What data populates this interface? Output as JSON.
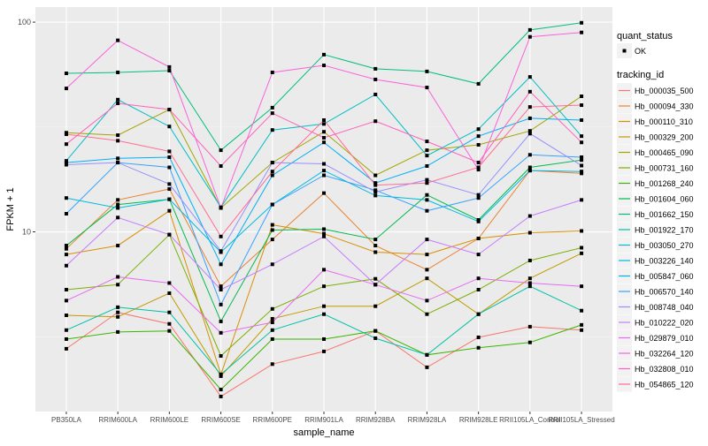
{
  "chart_data": {
    "type": "line",
    "title": "",
    "xlabel": "sample_name",
    "ylabel": "FPKM + 1",
    "yscale": "log10",
    "ylim": [
      1.39,
      118
    ],
    "yticks": [
      {
        "value": 100,
        "label": "100"
      },
      {
        "value": 10,
        "label": "10"
      }
    ],
    "grid": true,
    "legend_placement": "right",
    "categories": [
      "PB350LA",
      "RRIM600LA",
      "RRIM600LE",
      "RRIM600SE",
      "RRIM600PE",
      "RRIM901LA",
      "RRIM928BA",
      "RRIM928LA",
      "RRIM928LE",
      "RRII105LA_Control",
      "RRII105LA_Stressed"
    ],
    "shape_legend": {
      "title": "quant_status",
      "items": [
        "OK"
      ]
    },
    "color_legend_title": "tracking_id",
    "series": [
      {
        "name": "Hb_000035_500",
        "color": "#F8766D",
        "values": [
          2.77,
          4.13,
          3.64,
          1.64,
          2.34,
          2.69,
          3.37,
          2.26,
          3.14,
          3.53,
          3.4
        ]
      },
      {
        "name": "Hb_000094_330",
        "color": "#EA8331",
        "values": [
          8.3,
          14.2,
          16.0,
          5.5,
          9.2,
          15.3,
          8.6,
          6.6,
          9.3,
          19.6,
          19.0
        ]
      },
      {
        "name": "Hb_000110_310",
        "color": "#D89000",
        "values": [
          7.8,
          8.6,
          12.6,
          2.09,
          10.8,
          9.8,
          8.0,
          7.8,
          9.3,
          9.9,
          10.1
        ]
      },
      {
        "name": "Hb_000329_200",
        "color": "#C09B00",
        "values": [
          4.0,
          3.93,
          5.1,
          2.05,
          3.85,
          4.42,
          4.42,
          6.0,
          4.05,
          6.0,
          7.9
        ]
      },
      {
        "name": "Hb_000465_090",
        "color": "#A3A500",
        "values": [
          29.7,
          28.9,
          38.3,
          13.0,
          21.4,
          30.0,
          18.6,
          24.5,
          26.0,
          30.3,
          44.3
        ]
      },
      {
        "name": "Hb_000731_160",
        "color": "#7CAE00",
        "values": [
          5.3,
          5.6,
          9.7,
          2.56,
          4.29,
          5.5,
          5.97,
          4.05,
          5.3,
          7.3,
          8.4
        ]
      },
      {
        "name": "Hb_001268_240",
        "color": "#39B600",
        "values": [
          3.08,
          3.33,
          3.37,
          1.77,
          3.08,
          3.08,
          3.37,
          2.59,
          2.8,
          2.97,
          3.6
        ]
      },
      {
        "name": "Hb_001604_060",
        "color": "#00BB4E",
        "values": [
          8.6,
          13.5,
          14.3,
          3.74,
          10.2,
          10.3,
          9.2,
          15.0,
          11.4,
          20.3,
          22.0
        ]
      },
      {
        "name": "Hb_001662_150",
        "color": "#00BF7D",
        "values": [
          57,
          57.6,
          58.7,
          24.5,
          39.1,
          70,
          59.9,
          58.2,
          50.8,
          91.8,
          99.3
        ]
      },
      {
        "name": "Hb_001922_170",
        "color": "#00C1A3",
        "values": [
          3.4,
          4.37,
          4.13,
          2.09,
          3.4,
          4.05,
          3.11,
          2.59,
          4.05,
          5.5,
          4.21
        ]
      },
      {
        "name": "Hb_003050_270",
        "color": "#00BFC4",
        "values": [
          21.8,
          42.7,
          31.8,
          13.1,
          30.6,
          32.7,
          45.2,
          23.1,
          30.9,
          54.8,
          28.6
        ]
      },
      {
        "name": "Hb_003226_140",
        "color": "#00BAE0",
        "values": [
          14.5,
          13.0,
          14.3,
          8.0,
          13.5,
          19.6,
          14.9,
          14.2,
          11.2,
          19.6,
          19.4
        ]
      },
      {
        "name": "Hb_005847_060",
        "color": "#00B0F6",
        "values": [
          21.4,
          22.4,
          22.7,
          7.0,
          18.6,
          26.7,
          17.1,
          20.6,
          28.6,
          34.8,
          34.1
        ]
      },
      {
        "name": "Hb_006570_140",
        "color": "#35A2FF",
        "values": [
          12.2,
          21.4,
          20.3,
          4.5,
          13.5,
          18.6,
          15.8,
          12.6,
          14.5,
          23.3,
          22.7
        ]
      },
      {
        "name": "Hb_008748_040",
        "color": "#9590FF",
        "values": [
          20.9,
          21.4,
          16.9,
          8.1,
          21.4,
          21.1,
          15.5,
          17.7,
          15.0,
          29.4,
          20.7
        ]
      },
      {
        "name": "Hb_010222_020",
        "color": "#C77CFF",
        "values": [
          6.9,
          11.7,
          9.7,
          5.3,
          7.0,
          9.5,
          5.6,
          9.2,
          7.8,
          11.9,
          14.2
        ]
      },
      {
        "name": "Hb_029879_010",
        "color": "#E76BF3",
        "values": [
          4.7,
          6.1,
          5.7,
          3.3,
          3.7,
          6.6,
          5.6,
          4.7,
          6.0,
          5.7,
          5.5
        ]
      },
      {
        "name": "Hb_032264_120",
        "color": "#FA62DB",
        "values": [
          48.3,
          81.9,
          61.1,
          13.0,
          57.6,
          62.2,
          53.3,
          48.8,
          19.8,
          85.1,
          89.3
        ]
      },
      {
        "name": "Hb_032808_010",
        "color": "#FF62BC",
        "values": [
          26.2,
          41.0,
          38.3,
          20.6,
          36.8,
          28.1,
          33.7,
          27.0,
          21.4,
          46.6,
          26.7
        ]
      },
      {
        "name": "Hb_054865_120",
        "color": "#FF6C91",
        "values": [
          29.2,
          27.2,
          24.2,
          9.5,
          19.4,
          34.1,
          16.7,
          17.1,
          20.3,
          39.4,
          40.2
        ]
      }
    ]
  }
}
